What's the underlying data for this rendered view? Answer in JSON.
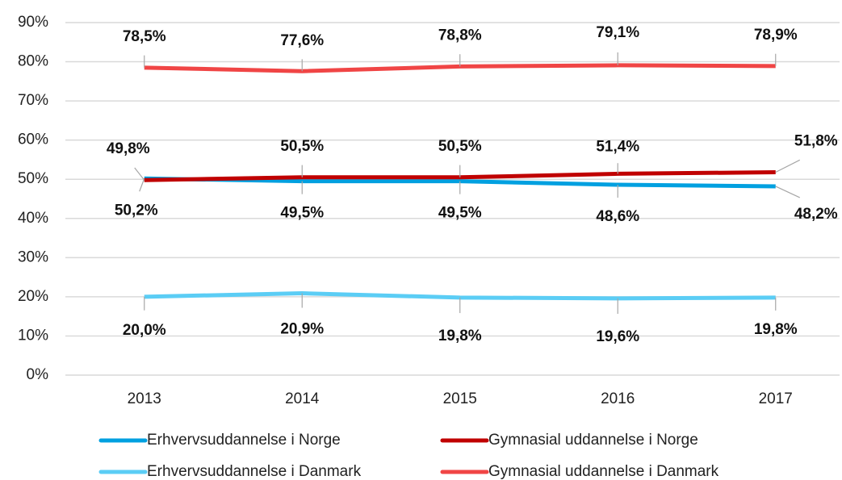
{
  "chart_data": {
    "type": "line",
    "categories": [
      "2013",
      "2014",
      "2015",
      "2016",
      "2017"
    ],
    "ylim": [
      0,
      90
    ],
    "yticks": [
      {
        "value": 0,
        "label": "0%"
      },
      {
        "value": 10,
        "label": "10%"
      },
      {
        "value": 20,
        "label": "20%"
      },
      {
        "value": 30,
        "label": "30%"
      },
      {
        "value": 40,
        "label": "40%"
      },
      {
        "value": 50,
        "label": "50%"
      },
      {
        "value": 60,
        "label": "60%"
      },
      {
        "value": 70,
        "label": "70%"
      },
      {
        "value": 80,
        "label": "80%"
      },
      {
        "value": 90,
        "label": "90%"
      }
    ],
    "grid": true,
    "legend": "bottom",
    "series": [
      {
        "name": "Erhvervsuddannelse i Norge",
        "color": "#00a0e0",
        "values": [
          50.2,
          49.5,
          49.5,
          48.6,
          48.2
        ],
        "value_labels": [
          "50,2%",
          "49,5%",
          "49,5%",
          "48,6%",
          "48,2%"
        ]
      },
      {
        "name": "Gymnasial uddannelse i Norge",
        "color": "#c00000",
        "values": [
          49.8,
          50.5,
          50.5,
          51.4,
          51.8
        ],
        "value_labels": [
          "49,8%",
          "50,5%",
          "50,5%",
          "51,4%",
          "51,8%"
        ]
      },
      {
        "name": "Erhvervsuddannelse i Danmark",
        "color": "#5bcdf5",
        "values": [
          20.0,
          20.9,
          19.8,
          19.6,
          19.8
        ],
        "value_labels": [
          "20,0%",
          "20,9%",
          "19,8%",
          "19,6%",
          "19,8%"
        ]
      },
      {
        "name": "Gymnasial uddannelse i Danmark",
        "color": "#f04545",
        "values": [
          78.5,
          77.6,
          78.8,
          79.1,
          78.9
        ],
        "value_labels": [
          "78,5%",
          "77,6%",
          "78,8%",
          "79,1%",
          "78,9%"
        ]
      }
    ]
  }
}
